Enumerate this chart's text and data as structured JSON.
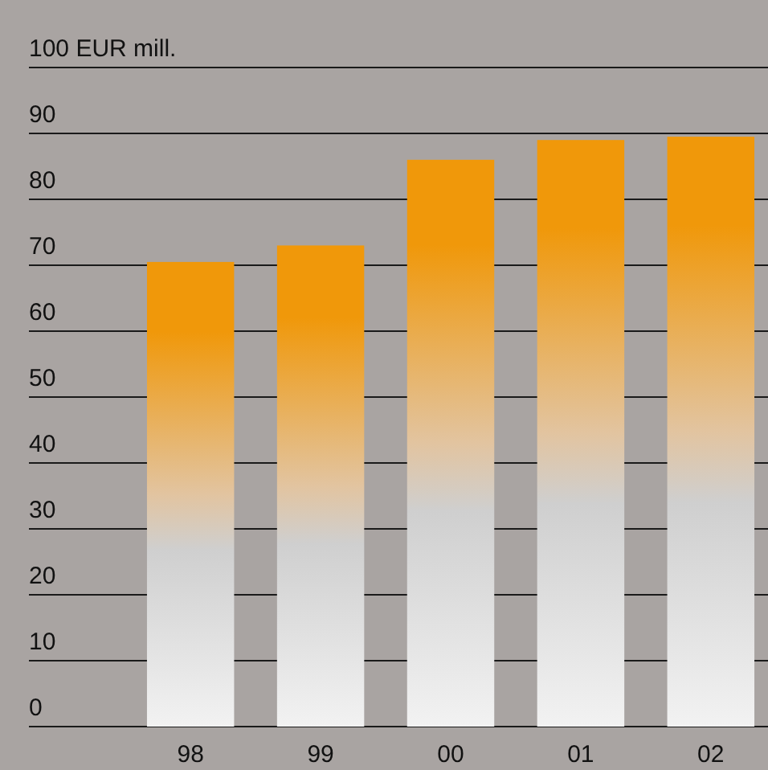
{
  "chart_data": {
    "type": "bar",
    "categories": [
      "98",
      "99",
      "00",
      "01",
      "02"
    ],
    "values": [
      70.5,
      73,
      86,
      89,
      89.5
    ],
    "color": "#f0980a",
    "ylim": [
      0,
      100
    ],
    "yticks": [
      0,
      10,
      20,
      30,
      40,
      50,
      60,
      70,
      80,
      90,
      {
        "value": 100,
        "label": "100 EUR mill."
      }
    ],
    "grid": "y"
  }
}
